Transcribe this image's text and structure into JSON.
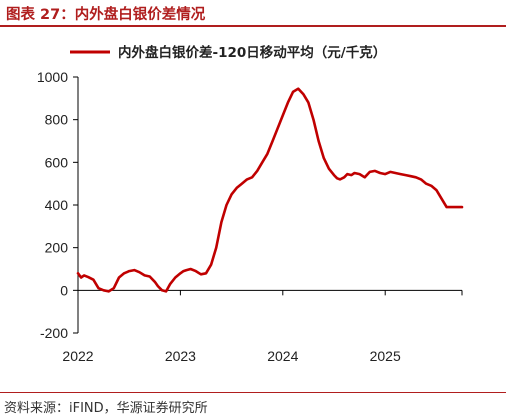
{
  "header": {
    "title": "图表 27：内外盘白银价差情况"
  },
  "source": {
    "text": "资料来源：iFIND，华源证券研究所"
  },
  "colors": {
    "accent": "#b01e1e",
    "line": "#c00000",
    "axis": "#000000"
  },
  "chart_data": {
    "type": "line",
    "title": "",
    "xlabel": "",
    "ylabel": "",
    "ylim": [
      -200,
      1000
    ],
    "yticks": [
      "1000",
      "800",
      "600",
      "400",
      "200",
      "0",
      "-200"
    ],
    "ytick_values": [
      1000,
      800,
      600,
      400,
      200,
      0,
      -200
    ],
    "xticks": [
      "2022",
      "2023",
      "2024",
      "2025"
    ],
    "xtick_values": [
      2022.0,
      2023.0,
      2024.0,
      2025.0
    ],
    "xlim": [
      2022.0,
      2025.75
    ],
    "grid": false,
    "legend_position": "top-center",
    "series": [
      {
        "name": "内外盘白银价差-120日移动平均（元/千克）",
        "x": [
          2022.0,
          2022.03,
          2022.06,
          2022.1,
          2022.15,
          2022.2,
          2022.25,
          2022.3,
          2022.35,
          2022.4,
          2022.45,
          2022.5,
          2022.55,
          2022.6,
          2022.65,
          2022.7,
          2022.75,
          2022.78,
          2022.82,
          2022.86,
          2022.9,
          2022.95,
          2023.0,
          2023.03,
          2023.06,
          2023.1,
          2023.15,
          2023.2,
          2023.25,
          2023.3,
          2023.35,
          2023.4,
          2023.45,
          2023.5,
          2023.55,
          2023.6,
          2023.65,
          2023.7,
          2023.75,
          2023.8,
          2023.85,
          2023.9,
          2023.95,
          2024.0,
          2024.05,
          2024.1,
          2024.15,
          2024.2,
          2024.25,
          2024.3,
          2024.35,
          2024.4,
          2024.45,
          2024.5,
          2024.53,
          2024.56,
          2024.6,
          2024.63,
          2024.67,
          2024.7,
          2024.75,
          2024.8,
          2024.85,
          2024.9,
          2024.95,
          2025.0,
          2025.05,
          2025.1,
          2025.15,
          2025.2,
          2025.25,
          2025.3,
          2025.35,
          2025.4,
          2025.45,
          2025.5,
          2025.55,
          2025.6,
          2025.65,
          2025.7,
          2025.75
        ],
        "y": [
          80,
          60,
          70,
          62,
          50,
          10,
          0,
          -5,
          10,
          60,
          80,
          90,
          95,
          85,
          70,
          65,
          40,
          20,
          0,
          -5,
          30,
          60,
          80,
          90,
          95,
          100,
          90,
          75,
          80,
          120,
          200,
          320,
          400,
          450,
          480,
          500,
          520,
          530,
          560,
          600,
          640,
          700,
          760,
          820,
          880,
          930,
          945,
          920,
          880,
          800,
          700,
          620,
          570,
          540,
          525,
          520,
          530,
          545,
          540,
          550,
          545,
          530,
          555,
          560,
          550,
          545,
          555,
          550,
          545,
          540,
          535,
          530,
          520,
          500,
          490,
          470,
          430,
          390,
          390,
          390,
          390
        ]
      }
    ]
  }
}
